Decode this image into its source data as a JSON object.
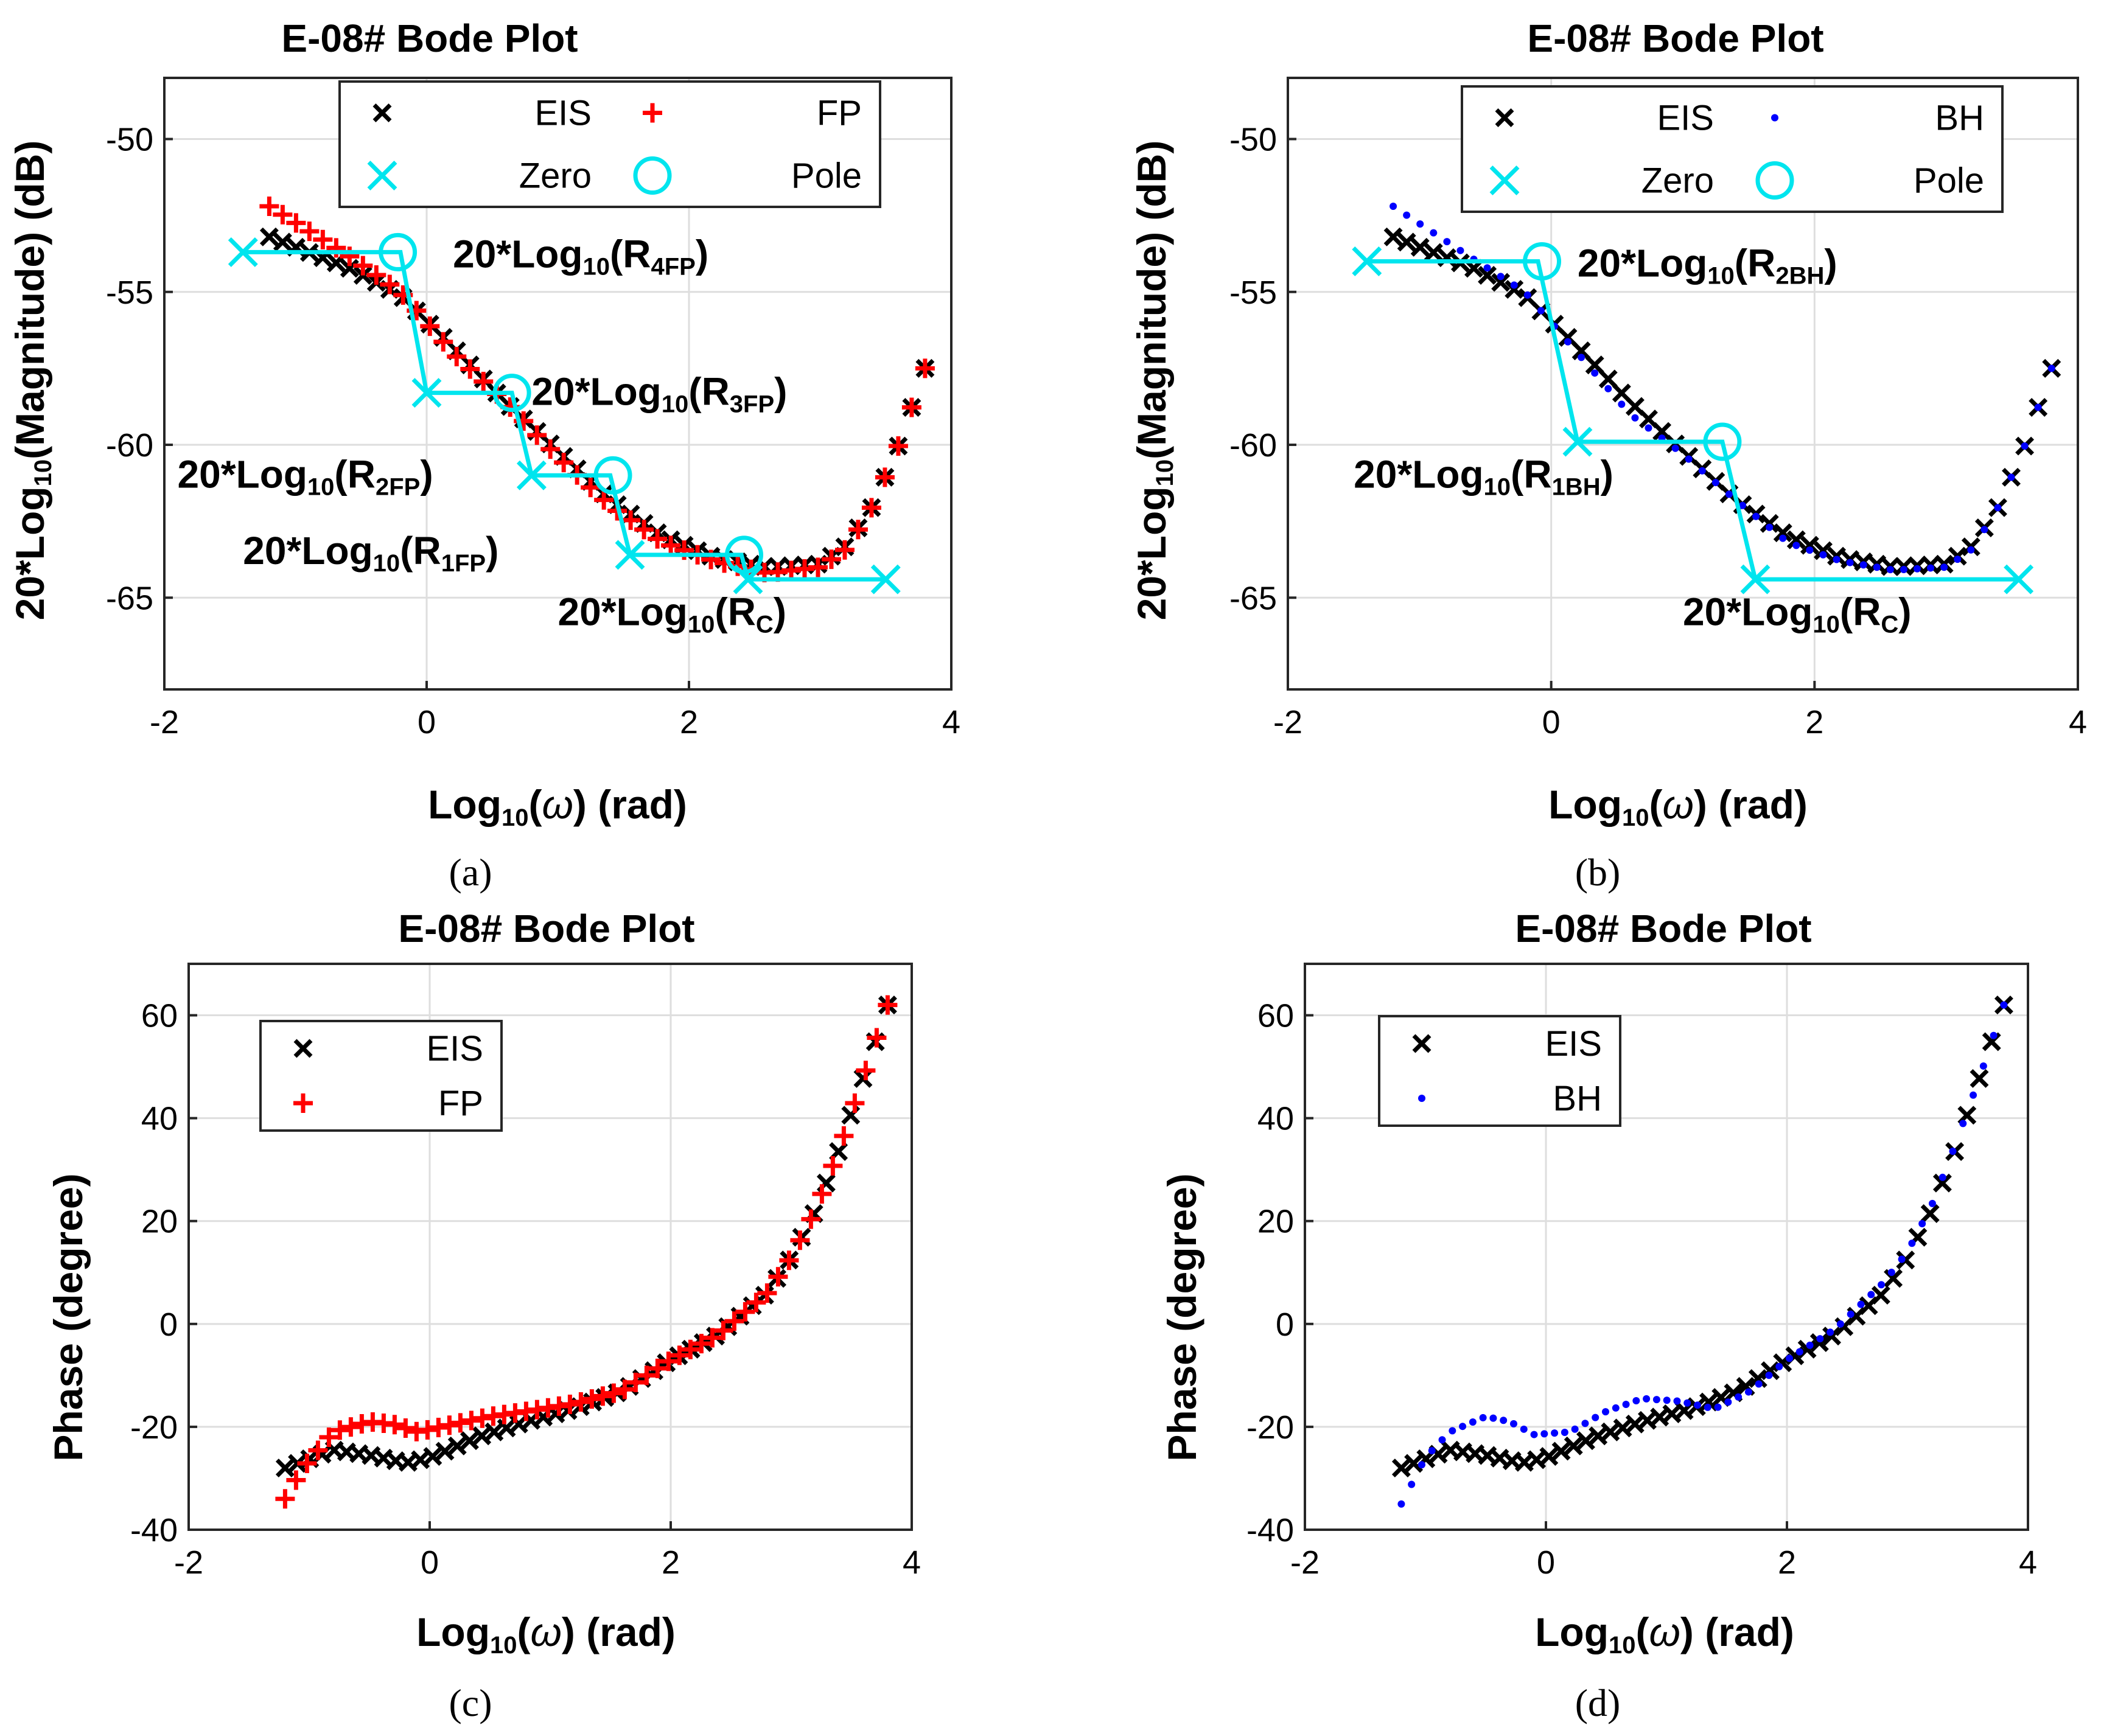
{
  "chart_data": [
    {
      "id": "a",
      "type": "scatter",
      "caption": "(a)",
      "title": "E-08# Bode Plot",
      "xlabel": "Log10(ω) (rad)",
      "ylabel": "20*Log10(Magnitude) (dB)",
      "xlim": [
        -2,
        4
      ],
      "ylim": [
        -68,
        -48
      ],
      "xticks": [
        -2,
        0,
        2,
        4
      ],
      "yticks": [
        -50,
        -55,
        -60,
        -65
      ],
      "grid": true,
      "legend": {
        "placement": "top-right",
        "entries": [
          {
            "label": "EIS",
            "marker": "x",
            "color": "#000000"
          },
          {
            "label": "FP",
            "marker": "+",
            "color": "#ff0000"
          },
          {
            "label": "Zero",
            "marker": "bigx",
            "color": "#00e5ee"
          },
          {
            "label": "Pole",
            "marker": "circle",
            "color": "#00e5ee"
          }
        ]
      },
      "series": [
        {
          "name": "EIS",
          "marker": "x",
          "color": "#000000",
          "x_start": -1.2,
          "x_end": 3.8,
          "n": 50,
          "curve": {
            "x": [
              -1.2,
              -0.6,
              -0.2,
              0.2,
              0.6,
              1.0,
              1.4,
              1.8,
              2.2,
              2.6,
              3.0,
              3.2,
              3.4,
              3.6,
              3.8
            ],
            "y": [
              -53.2,
              -54.2,
              -55.1,
              -56.8,
              -58.6,
              -60.2,
              -61.8,
              -63.0,
              -63.7,
              -64.0,
              -63.9,
              -63.3,
              -62.0,
              -60.0,
              -57.5
            ]
          }
        },
        {
          "name": "FP",
          "marker": "+",
          "color": "#ff0000",
          "x_start": -1.2,
          "x_end": 3.8,
          "n": 50,
          "curve": {
            "x": [
              -1.2,
              -0.9,
              -0.6,
              -0.2,
              0.2,
              0.6,
              1.0,
              1.4,
              1.8,
              2.2,
              2.6,
              3.0,
              3.2,
              3.4,
              3.6,
              3.8
            ],
            "y": [
              -52.2,
              -53.0,
              -53.8,
              -55.0,
              -57.0,
              -58.6,
              -60.4,
              -62.0,
              -63.2,
              -63.8,
              -64.2,
              -64.0,
              -63.4,
              -62.0,
              -60.0,
              -57.5
            ]
          }
        },
        {
          "name": "Asymptote",
          "marker": "line",
          "color": "#00e5ee",
          "points": [
            [
              -1.4,
              -53.7
            ],
            [
              -0.2,
              -53.7
            ],
            [
              0.0,
              -58.3
            ],
            [
              0.65,
              -58.3
            ],
            [
              0.8,
              -61.0
            ],
            [
              1.4,
              -61.0
            ],
            [
              1.55,
              -63.6
            ],
            [
              2.4,
              -63.6
            ],
            [
              2.45,
              -64.4
            ],
            [
              3.5,
              -64.4
            ]
          ]
        },
        {
          "name": "Zero",
          "marker": "bigx",
          "color": "#00e5ee",
          "points": [
            [
              -1.4,
              -53.7
            ],
            [
              0.0,
              -58.3
            ],
            [
              0.8,
              -61.0
            ],
            [
              1.55,
              -63.6
            ],
            [
              2.45,
              -64.4
            ],
            [
              3.5,
              -64.4
            ]
          ]
        },
        {
          "name": "Pole",
          "marker": "circle",
          "color": "#00e5ee",
          "points": [
            [
              -0.22,
              -53.7
            ],
            [
              0.65,
              -58.3
            ],
            [
              1.42,
              -61.0
            ],
            [
              2.42,
              -63.6
            ]
          ]
        }
      ],
      "annotations": [
        {
          "main": "20*Log",
          "sub": "10",
          "tail": "(R",
          "sub2": "4FP",
          "end": ")",
          "x": 0.2,
          "y": -54.2
        },
        {
          "main": "20*Log",
          "sub": "10",
          "tail": "(R",
          "sub2": "3FP",
          "end": ")",
          "x": 0.8,
          "y": -58.7
        },
        {
          "main": "20*Log",
          "sub": "10",
          "tail": "(R",
          "sub2": "2FP",
          "end": ")",
          "x": -1.9,
          "y": -61.4
        },
        {
          "main": "20*Log",
          "sub": "10",
          "tail": "(R",
          "sub2": "1FP",
          "end": ")",
          "x": -1.4,
          "y": -63.9
        },
        {
          "main": "20*Log",
          "sub": "10",
          "tail": "(R",
          "sub2": "C",
          "end": ")",
          "x": 1.0,
          "y": -65.9
        }
      ]
    },
    {
      "id": "b",
      "type": "scatter",
      "caption": "(b)",
      "title": "E-08# Bode Plot",
      "xlabel": "Log10(ω) (rad)",
      "ylabel": "20*Log10(Magnitude) (dB)",
      "xlim": [
        -2,
        4
      ],
      "ylim": [
        -68,
        -48
      ],
      "xticks": [
        -2,
        0,
        2,
        4
      ],
      "yticks": [
        -50,
        -55,
        -60,
        -65
      ],
      "grid": true,
      "legend": {
        "placement": "top-right",
        "entries": [
          {
            "label": "EIS",
            "marker": "x",
            "color": "#000000"
          },
          {
            "label": "BH",
            "marker": "dot",
            "color": "#0000ff"
          },
          {
            "label": "Zero",
            "marker": "bigx",
            "color": "#00e5ee"
          },
          {
            "label": "Pole",
            "marker": "circle",
            "color": "#00e5ee"
          }
        ]
      },
      "series": [
        {
          "name": "EIS",
          "marker": "x",
          "color": "#000000",
          "x_start": -1.2,
          "x_end": 3.8,
          "n": 50,
          "curve": {
            "x": [
              -1.2,
              -0.6,
              -0.2,
              0.2,
              0.6,
              1.0,
              1.4,
              1.8,
              2.2,
              2.6,
              3.0,
              3.2,
              3.4,
              3.6,
              3.8
            ],
            "y": [
              -53.2,
              -54.2,
              -55.1,
              -56.8,
              -58.6,
              -60.2,
              -61.8,
              -63.0,
              -63.7,
              -64.0,
              -63.9,
              -63.3,
              -62.0,
              -60.0,
              -57.5
            ]
          }
        },
        {
          "name": "BH",
          "marker": "dot",
          "color": "#0000ff",
          "x_start": -1.2,
          "x_end": 3.8,
          "n": 50,
          "curve": {
            "x": [
              -1.2,
              -0.6,
              -0.2,
              0.2,
              0.6,
              1.0,
              1.4,
              1.8,
              2.2,
              2.6,
              3.0,
              3.2,
              3.4,
              3.6,
              3.8
            ],
            "y": [
              -52.2,
              -53.9,
              -55.0,
              -57.0,
              -59.0,
              -60.3,
              -61.8,
              -63.2,
              -63.8,
              -64.1,
              -64.0,
              -63.4,
              -62.0,
              -60.0,
              -57.5
            ]
          }
        },
        {
          "name": "Asymptote",
          "marker": "line",
          "color": "#00e5ee",
          "points": [
            [
              -1.4,
              -54.0
            ],
            [
              -0.1,
              -54.0
            ],
            [
              0.2,
              -59.9
            ],
            [
              1.3,
              -59.9
            ],
            [
              1.55,
              -64.4
            ],
            [
              3.55,
              -64.4
            ]
          ]
        },
        {
          "name": "Zero",
          "marker": "bigx",
          "color": "#00e5ee",
          "points": [
            [
              -1.4,
              -54.0
            ],
            [
              0.2,
              -59.9
            ],
            [
              1.55,
              -64.4
            ],
            [
              3.55,
              -64.4
            ]
          ]
        },
        {
          "name": "Pole",
          "marker": "circle",
          "color": "#00e5ee",
          "points": [
            [
              -0.07,
              -54.0
            ],
            [
              1.3,
              -59.9
            ]
          ]
        }
      ],
      "annotations": [
        {
          "main": "20*Log",
          "sub": "10",
          "tail": "(R",
          "sub2": "2BH",
          "end": ")",
          "x": 0.2,
          "y": -54.5
        },
        {
          "main": "20*Log",
          "sub": "10",
          "tail": "(R",
          "sub2": "1BH",
          "end": ")",
          "x": -1.5,
          "y": -61.4
        },
        {
          "main": "20*Log",
          "sub": "10",
          "tail": "(R",
          "sub2": "C",
          "end": ")",
          "x": 1.0,
          "y": -65.9
        }
      ]
    },
    {
      "id": "c",
      "type": "scatter",
      "caption": "(c)",
      "title": "E-08# Bode Plot",
      "xlabel": "Log10(ω) (rad)",
      "ylabel": "Phase (degree)",
      "xlim": [
        -2,
        4
      ],
      "ylim": [
        -40,
        70
      ],
      "xticks": [
        -2,
        0,
        2,
        4
      ],
      "yticks": [
        60,
        40,
        20,
        0,
        -20,
        -40
      ],
      "grid": true,
      "legend": {
        "placement": "top-left",
        "entries": [
          {
            "label": "EIS",
            "marker": "x",
            "color": "#000000"
          },
          {
            "label": "FP",
            "marker": "+",
            "color": "#ff0000"
          }
        ]
      },
      "series": [
        {
          "name": "EIS",
          "marker": "x",
          "color": "#000000",
          "x_start": -1.2,
          "x_end": 3.8,
          "n": 50,
          "curve": {
            "x": [
              -1.2,
              -0.8,
              -0.5,
              -0.2,
              0.0,
              0.4,
              0.8,
              1.2,
              1.6,
              2.0,
              2.4,
              2.8,
              3.0,
              3.2,
              3.4,
              3.6,
              3.8
            ],
            "y": [
              -28,
              -24.5,
              -25.5,
              -27,
              -26,
              -22,
              -19,
              -16.5,
              -13,
              -7,
              -2,
              6,
              13,
              22,
              34,
              48,
              62
            ]
          }
        },
        {
          "name": "FP",
          "marker": "+",
          "color": "#ff0000",
          "x_start": -1.2,
          "x_end": 3.8,
          "n": 56,
          "curve": {
            "x": [
              -1.2,
              -1.05,
              -0.8,
              -0.5,
              -0.3,
              -0.1,
              0.2,
              0.5,
              0.8,
              1.2,
              1.6,
              2.0,
              2.4,
              2.8,
              3.0,
              3.2,
              3.4,
              3.6,
              3.8
            ],
            "y": [
              -34,
              -28,
              -21,
              -19,
              -19.5,
              -21,
              -19.5,
              -18,
              -17,
              -15.5,
              -13,
              -7,
              -2,
              6,
              13,
              22,
              34,
              48,
              62
            ]
          }
        }
      ]
    },
    {
      "id": "d",
      "type": "scatter",
      "caption": "(d)",
      "title": "E-08# Bode Plot",
      "xlabel": "Log10(ω) (rad)",
      "ylabel": "Phase (degree)",
      "xlim": [
        -2,
        4
      ],
      "ylim": [
        -40,
        70
      ],
      "xticks": [
        -2,
        0,
        2,
        4
      ],
      "yticks": [
        60,
        40,
        20,
        0,
        -20,
        -40
      ],
      "grid": true,
      "legend": {
        "placement": "top-left",
        "entries": [
          {
            "label": "EIS",
            "marker": "x",
            "color": "#000000"
          },
          {
            "label": "BH",
            "marker": "dot",
            "color": "#0000ff"
          }
        ]
      },
      "series": [
        {
          "name": "EIS",
          "marker": "x",
          "color": "#000000",
          "x_start": -1.2,
          "x_end": 3.8,
          "n": 50,
          "curve": {
            "x": [
              -1.2,
              -0.8,
              -0.5,
              -0.2,
              0.0,
              0.4,
              0.8,
              1.2,
              1.6,
              2.0,
              2.4,
              2.8,
              3.0,
              3.2,
              3.4,
              3.6,
              3.8
            ],
            "y": [
              -28,
              -24.5,
              -25.5,
              -27,
              -26,
              -22,
              -19,
              -16.5,
              -13,
              -7,
              -2,
              6,
              13,
              22,
              34,
              48,
              62
            ]
          }
        },
        {
          "name": "BH",
          "marker": "dot",
          "color": "#0000ff",
          "x_start": -1.2,
          "x_end": 3.8,
          "n": 60,
          "curve": {
            "x": [
              -1.2,
              -1.0,
              -0.8,
              -0.5,
              -0.3,
              -0.1,
              0.2,
              0.5,
              0.8,
              1.1,
              1.4,
              1.7,
              2.0,
              2.4,
              2.8,
              3.0,
              3.2,
              3.4,
              3.6,
              3.8
            ],
            "y": [
              -35,
              -26,
              -21,
              -18,
              -19,
              -21.5,
              -21,
              -17,
              -14.5,
              -15,
              -16.5,
              -13,
              -7,
              -1,
              8,
              14,
              23,
              35,
              48,
              62
            ]
          }
        }
      ]
    }
  ]
}
